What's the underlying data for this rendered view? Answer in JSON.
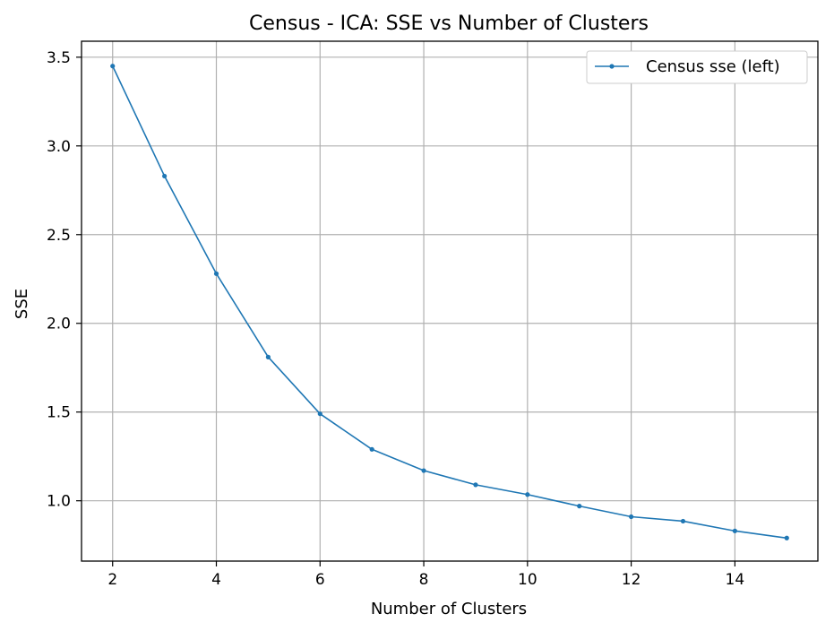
{
  "chart_data": {
    "type": "line",
    "title": "Census - ICA: SSE vs Number of Clusters",
    "xlabel": "Number of Clusters",
    "ylabel": "SSE",
    "xlim": [
      1.4,
      15.6
    ],
    "ylim": [
      0.66,
      3.59
    ],
    "xticks": [
      2,
      4,
      6,
      8,
      10,
      12,
      14
    ],
    "yticks": [
      1.0,
      1.5,
      2.0,
      2.5,
      3.0,
      3.5
    ],
    "xtick_labels": [
      "2",
      "4",
      "6",
      "8",
      "10",
      "12",
      "14"
    ],
    "ytick_labels": [
      "1.0",
      "1.5",
      "2.0",
      "2.5",
      "3.0",
      "3.5"
    ],
    "grid": true,
    "legend_position": "top-right",
    "series": [
      {
        "name": "Census sse (left)",
        "color": "#1f77b4",
        "marker": "circle",
        "x": [
          2,
          3,
          4,
          5,
          6,
          7,
          8,
          9,
          10,
          11,
          12,
          13,
          14,
          15
        ],
        "y": [
          3.45,
          2.83,
          2.28,
          1.81,
          1.49,
          1.29,
          1.17,
          1.09,
          1.035,
          0.97,
          0.91,
          0.885,
          0.83,
          0.79
        ]
      }
    ]
  }
}
